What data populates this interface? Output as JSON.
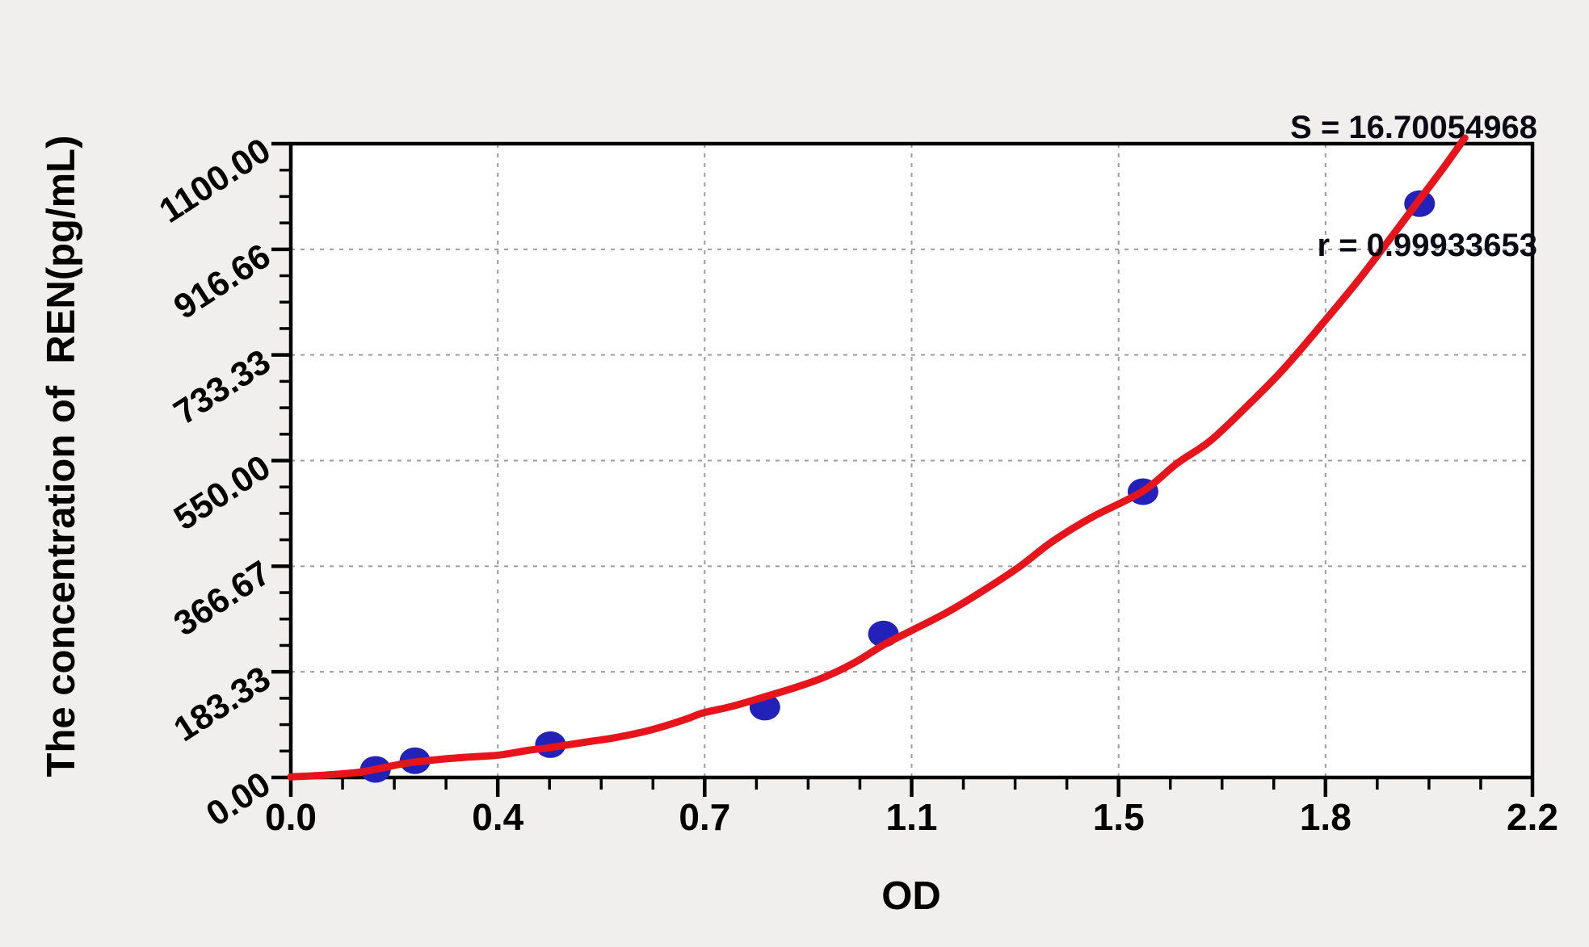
{
  "colors": {
    "background": "#f0efed",
    "plot_background": "#ffffff",
    "curve": "#e8141c",
    "point": "#2222bb",
    "grid": "#9c9c9c",
    "axis": "#000000",
    "text": "#000000"
  },
  "chart_data": {
    "type": "scatter",
    "title": "",
    "xlabel": "OD",
    "ylabel": "The concentration of  REN(pg/mL)",
    "xlim": [
      0,
      2.2
    ],
    "ylim": [
      0,
      1100
    ],
    "grid": {
      "show": true,
      "style": "dashed",
      "on": "major"
    },
    "legend_position": "none",
    "x_ticks": {
      "labels": [
        "0.0",
        "0.4",
        "0.7",
        "1.1",
        "1.5",
        "1.8",
        "2.2"
      ],
      "values": [
        0,
        0.3667,
        0.7333,
        1.1,
        1.4667,
        1.8333,
        2.2
      ],
      "minor_per_interval": 3
    },
    "y_ticks": {
      "labels": [
        "0.00",
        "183.33",
        "366.67",
        "550.00",
        "733.33",
        "916.66",
        "1100.00"
      ],
      "values": [
        0,
        183.33,
        366.67,
        550.0,
        733.33,
        916.66,
        1100.0
      ],
      "minor_per_interval": 3
    },
    "stats": {
      "s_line": "S = 16.70054968",
      "r_line": "r = 0.99933653"
    },
    "points": [
      {
        "od": 0.15,
        "conc": 14
      },
      {
        "od": 0.22,
        "conc": 29
      },
      {
        "od": 0.46,
        "conc": 57
      },
      {
        "od": 0.84,
        "conc": 122
      },
      {
        "od": 1.05,
        "conc": 249
      },
      {
        "od": 1.51,
        "conc": 496
      },
      {
        "od": 2.0,
        "conc": 996
      }
    ],
    "fit_curve": [
      [
        0.0,
        1
      ],
      [
        0.06,
        4
      ],
      [
        0.12,
        9
      ],
      [
        0.15,
        14
      ],
      [
        0.2,
        24
      ],
      [
        0.26,
        31
      ],
      [
        0.31,
        35
      ],
      [
        0.37,
        39
      ],
      [
        0.42,
        47
      ],
      [
        0.46,
        52
      ],
      [
        0.52,
        61
      ],
      [
        0.58,
        70
      ],
      [
        0.64,
        83
      ],
      [
        0.7,
        101
      ],
      [
        0.73,
        112
      ],
      [
        0.78,
        123
      ],
      [
        0.84,
        140
      ],
      [
        0.9,
        158
      ],
      [
        0.95,
        176
      ],
      [
        1.0,
        200
      ],
      [
        1.05,
        230
      ],
      [
        1.1,
        255
      ],
      [
        1.16,
        285
      ],
      [
        1.22,
        320
      ],
      [
        1.29,
        365
      ],
      [
        1.35,
        410
      ],
      [
        1.42,
        452
      ],
      [
        1.51,
        497
      ],
      [
        1.57,
        545
      ],
      [
        1.63,
        585
      ],
      [
        1.7,
        650
      ],
      [
        1.76,
        710
      ],
      [
        1.83,
        790
      ],
      [
        1.89,
        861
      ],
      [
        1.94,
        925
      ],
      [
        1.99,
        990
      ],
      [
        2.04,
        1055
      ],
      [
        2.08,
        1110
      ]
    ]
  }
}
